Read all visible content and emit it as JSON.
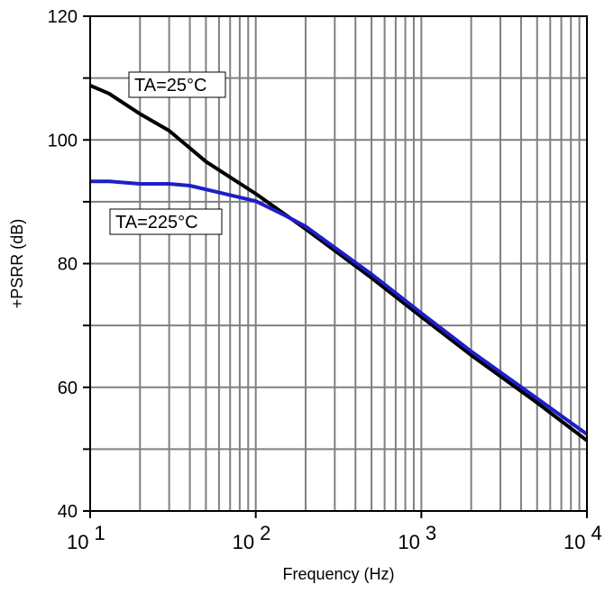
{
  "chart_data": {
    "type": "line",
    "xlabel": "Frequency (Hz)",
    "ylabel": "+PSRR (dB)",
    "xscale": "log",
    "xlim": [
      10,
      10000
    ],
    "ylim": [
      40,
      120
    ],
    "grid": true,
    "x_ticks": [
      {
        "value": 10,
        "base": "10",
        "exp": "1"
      },
      {
        "value": 100,
        "base": "10",
        "exp": "2"
      },
      {
        "value": 1000,
        "base": "10",
        "exp": "3"
      },
      {
        "value": 10000,
        "base": "10",
        "exp": "4"
      }
    ],
    "y_ticks": [
      "40",
      "60",
      "80",
      "100",
      "120"
    ],
    "series": [
      {
        "name": "TA=25°C",
        "color": "#000000",
        "points": [
          [
            10,
            108.8
          ],
          [
            13,
            107.5
          ],
          [
            20,
            104.2
          ],
          [
            30,
            101.5
          ],
          [
            50,
            96.5
          ],
          [
            100,
            91.3
          ],
          [
            200,
            85.6
          ],
          [
            500,
            77.7
          ],
          [
            1000,
            71.4
          ],
          [
            2000,
            65.2
          ],
          [
            5000,
            57.5
          ],
          [
            10000,
            51.4
          ]
        ]
      },
      {
        "name": "TA=225°C",
        "color": "#1e1ec8",
        "points": [
          [
            10,
            93.3
          ],
          [
            13,
            93.3
          ],
          [
            20,
            92.9
          ],
          [
            30,
            92.9
          ],
          [
            40,
            92.6
          ],
          [
            60,
            91.5
          ],
          [
            100,
            90.1
          ],
          [
            150,
            87.8
          ],
          [
            200,
            86.0
          ],
          [
            500,
            78.3
          ],
          [
            1000,
            72.0
          ],
          [
            2000,
            65.8
          ],
          [
            5000,
            58.2
          ],
          [
            10000,
            52.4
          ]
        ]
      }
    ],
    "annotations": [
      {
        "text": "TA=25°C",
        "series": "TA=25°C"
      },
      {
        "text": "TA=225°C",
        "series": "TA=225°C"
      }
    ]
  }
}
